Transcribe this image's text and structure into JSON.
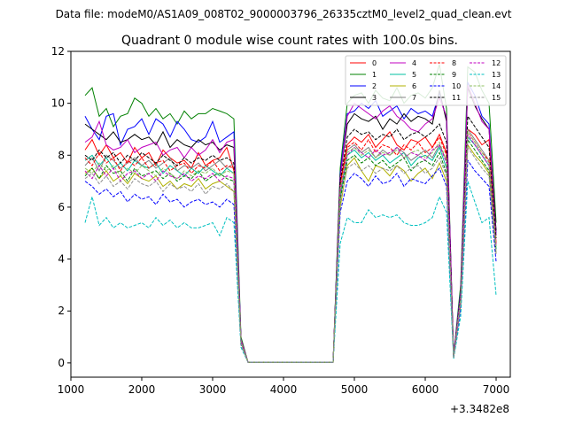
{
  "suptitle": "Data file: modeM0/AS1A09_008T02_9000003796_26335cztM0_level2_quad_clean.evt",
  "chart_data": {
    "type": "line",
    "title": "Quadrant 0 module wise count rates with 100.0s bins.",
    "xlabel": "",
    "ylabel": "",
    "x_offset_label": "+3.3482e8",
    "xlim": [
      1000,
      7200
    ],
    "ylim": [
      -0.55,
      12.0
    ],
    "x_ticks": [
      1000,
      2000,
      3000,
      4000,
      5000,
      6000,
      7000
    ],
    "y_ticks": [
      0,
      2,
      4,
      6,
      8,
      10,
      12
    ],
    "grid": false,
    "legend_position": "top-right",
    "x": [
      1200,
      1300,
      1400,
      1500,
      1600,
      1700,
      1800,
      1900,
      2000,
      2100,
      2200,
      2300,
      2400,
      2500,
      2600,
      2700,
      2800,
      2900,
      3000,
      3100,
      3200,
      3300,
      3400,
      3500,
      3600,
      3700,
      3800,
      3900,
      4000,
      4100,
      4200,
      4300,
      4400,
      4500,
      4600,
      4700,
      4800,
      4900,
      5000,
      5100,
      5200,
      5300,
      5400,
      5500,
      5600,
      5700,
      5800,
      5900,
      6000,
      6100,
      6200,
      6300,
      6400,
      6500,
      6600,
      6700,
      6800,
      6900,
      7000
    ],
    "series": [
      {
        "name": "0",
        "color": "#ff0000",
        "dash": "solid",
        "values": [
          8.2,
          8.6,
          8.0,
          8.4,
          7.9,
          8.1,
          7.7,
          8.3,
          7.9,
          8.1,
          7.6,
          8.2,
          7.9,
          7.7,
          7.8,
          7.5,
          8.1,
          7.6,
          7.8,
          7.9,
          8.3,
          7.4,
          0.9,
          0.02,
          0.02,
          0.02,
          0.02,
          0.02,
          0.02,
          0.02,
          0.02,
          0.02,
          0.02,
          0.02,
          0.02,
          0.02,
          6.9,
          8.4,
          8.7,
          8.5,
          8.8,
          8.3,
          8.6,
          8.9,
          8.4,
          8.2,
          8.6,
          8.5,
          8.7,
          8.3,
          8.8,
          8.1,
          0.2,
          2.6,
          9.0,
          8.8,
          8.4,
          8.6,
          4.6
        ]
      },
      {
        "name": "1",
        "color": "#008000",
        "dash": "solid",
        "values": [
          10.3,
          10.6,
          9.5,
          9.8,
          9.1,
          9.5,
          9.6,
          10.2,
          10.0,
          9.5,
          9.8,
          9.4,
          9.6,
          9.2,
          9.7,
          9.4,
          9.6,
          9.6,
          9.8,
          9.7,
          9.6,
          9.4,
          1.0,
          0.02,
          0.02,
          0.02,
          0.02,
          0.02,
          0.02,
          0.02,
          0.02,
          0.02,
          0.02,
          0.02,
          0.02,
          0.02,
          7.5,
          10.0,
          10.3,
          10.4,
          10.0,
          10.5,
          10.2,
          10.1,
          10.6,
          10.0,
          10.3,
          10.4,
          10.2,
          10.6,
          11.5,
          9.8,
          0.3,
          3.0,
          11.4,
          11.2,
          10.5,
          10.0,
          5.4
        ]
      },
      {
        "name": "2",
        "color": "#0000ff",
        "dash": "solid",
        "values": [
          9.5,
          9.0,
          8.6,
          9.5,
          9.6,
          8.4,
          9.0,
          9.1,
          9.4,
          8.8,
          9.4,
          9.2,
          8.7,
          9.3,
          9.0,
          8.6,
          8.5,
          8.7,
          9.3,
          8.5,
          8.7,
          8.9,
          0.9,
          0.02,
          0.02,
          0.02,
          0.02,
          0.02,
          0.02,
          0.02,
          0.02,
          0.02,
          0.02,
          0.02,
          0.02,
          0.02,
          7.3,
          9.6,
          9.7,
          10.0,
          9.8,
          10.1,
          9.5,
          9.7,
          9.9,
          9.4,
          9.8,
          9.6,
          9.7,
          9.5,
          10.4,
          9.4,
          0.3,
          2.8,
          10.8,
          10.3,
          9.5,
          9.2,
          5.0
        ]
      },
      {
        "name": "3",
        "color": "#000000",
        "dash": "solid",
        "values": [
          9.2,
          9.0,
          8.8,
          8.6,
          8.9,
          8.5,
          8.6,
          8.8,
          8.6,
          8.7,
          8.4,
          8.9,
          8.3,
          8.6,
          8.4,
          8.3,
          8.6,
          8.4,
          8.5,
          8.2,
          8.4,
          8.3,
          0.9,
          0.02,
          0.02,
          0.02,
          0.02,
          0.02,
          0.02,
          0.02,
          0.02,
          0.02,
          0.02,
          0.02,
          0.02,
          0.02,
          7.2,
          9.2,
          9.6,
          9.4,
          9.3,
          9.5,
          9.0,
          9.4,
          9.2,
          9.6,
          9.3,
          9.5,
          9.4,
          9.2,
          10.5,
          9.3,
          0.3,
          2.7,
          10.6,
          9.9,
          9.4,
          9.0,
          5.1
        ]
      },
      {
        "name": "4",
        "color": "#c000c0",
        "dash": "solid",
        "values": [
          8.5,
          8.7,
          9.3,
          8.4,
          8.2,
          8.3,
          8.6,
          8.1,
          8.3,
          8.4,
          8.5,
          8.0,
          8.2,
          8.3,
          7.9,
          8.3,
          8.0,
          8.2,
          8.6,
          8.1,
          8.5,
          8.6,
          0.9,
          0.02,
          0.02,
          0.02,
          0.02,
          0.02,
          0.02,
          0.02,
          0.02,
          0.02,
          0.02,
          0.02,
          0.02,
          0.02,
          7.1,
          9.5,
          10.0,
          9.8,
          9.6,
          9.4,
          9.7,
          9.9,
          9.5,
          9.3,
          9.0,
          8.9,
          9.2,
          9.4,
          10.2,
          9.5,
          0.3,
          2.7,
          10.7,
          10.0,
          9.3,
          9.0,
          4.9
        ]
      },
      {
        "name": "5",
        "color": "#00c0a0",
        "dash": "solid",
        "values": [
          7.8,
          8.0,
          7.6,
          7.9,
          7.5,
          7.7,
          7.4,
          7.8,
          7.6,
          7.5,
          7.7,
          7.3,
          7.6,
          7.4,
          7.2,
          7.5,
          7.3,
          7.6,
          7.4,
          7.2,
          7.5,
          7.3,
          0.8,
          0.02,
          0.02,
          0.02,
          0.02,
          0.02,
          0.02,
          0.02,
          0.02,
          0.02,
          0.02,
          0.02,
          0.02,
          0.02,
          6.4,
          8.0,
          8.2,
          7.9,
          8.1,
          7.8,
          8.0,
          7.7,
          7.9,
          8.1,
          7.6,
          7.9,
          8.0,
          7.8,
          8.3,
          7.5,
          0.2,
          2.4,
          8.7,
          8.4,
          8.0,
          7.6,
          4.4
        ]
      },
      {
        "name": "6",
        "color": "#b0b000",
        "dash": "solid",
        "values": [
          7.3,
          7.5,
          7.1,
          7.4,
          7.0,
          7.2,
          6.9,
          7.3,
          7.1,
          7.0,
          7.2,
          6.8,
          7.0,
          6.7,
          6.9,
          6.8,
          7.1,
          6.7,
          6.9,
          7.0,
          6.8,
          6.6,
          0.8,
          0.02,
          0.02,
          0.02,
          0.02,
          0.02,
          0.02,
          0.02,
          0.02,
          0.02,
          0.02,
          0.02,
          0.02,
          0.02,
          6.0,
          7.6,
          7.9,
          7.4,
          7.0,
          7.6,
          7.5,
          7.2,
          7.6,
          7.4,
          7.0,
          7.3,
          7.5,
          7.1,
          7.7,
          7.0,
          0.2,
          2.2,
          8.4,
          8.0,
          7.7,
          7.3,
          4.2
        ]
      },
      {
        "name": "7",
        "color": "#808080",
        "dash": "solid",
        "values": [
          7.6,
          7.9,
          7.4,
          8.0,
          7.8,
          7.5,
          7.7,
          7.9,
          7.6,
          7.8,
          7.5,
          7.7,
          7.9,
          7.4,
          7.6,
          7.5,
          7.7,
          7.4,
          7.6,
          7.8,
          7.5,
          7.7,
          0.8,
          0.02,
          0.02,
          0.02,
          0.02,
          0.02,
          0.02,
          0.02,
          0.02,
          0.02,
          0.02,
          0.02,
          0.02,
          0.02,
          6.5,
          8.2,
          8.4,
          8.1,
          8.3,
          7.9,
          8.2,
          8.0,
          8.3,
          8.1,
          7.8,
          8.0,
          8.2,
          7.9,
          8.4,
          7.8,
          0.2,
          2.5,
          9.0,
          8.6,
          8.2,
          7.8,
          4.5
        ]
      },
      {
        "name": "8",
        "color": "#ff0000",
        "dash": "dashed",
        "values": [
          7.9,
          7.6,
          8.1,
          7.7,
          7.9,
          7.4,
          7.8,
          7.6,
          7.9,
          7.5,
          7.7,
          7.8,
          7.4,
          7.6,
          7.7,
          7.3,
          7.6,
          7.5,
          7.8,
          7.4,
          7.6,
          7.5,
          0.8,
          0.02,
          0.02,
          0.02,
          0.02,
          0.02,
          0.02,
          0.02,
          0.02,
          0.02,
          0.02,
          0.02,
          0.02,
          0.02,
          6.8,
          8.3,
          8.5,
          8.2,
          8.6,
          8.1,
          8.4,
          8.3,
          8.0,
          8.4,
          8.2,
          8.5,
          8.1,
          8.3,
          8.7,
          8.0,
          0.2,
          2.5,
          8.9,
          8.5,
          8.1,
          7.8,
          4.6
        ]
      },
      {
        "name": "9",
        "color": "#008000",
        "dash": "dashed",
        "values": [
          7.2,
          7.5,
          7.1,
          7.6,
          7.3,
          7.4,
          7.0,
          7.5,
          7.2,
          7.3,
          7.4,
          7.1,
          7.3,
          7.0,
          7.2,
          7.1,
          7.4,
          7.0,
          7.2,
          7.3,
          7.1,
          7.0,
          0.8,
          0.02,
          0.02,
          0.02,
          0.02,
          0.02,
          0.02,
          0.02,
          0.02,
          0.02,
          0.02,
          0.02,
          0.02,
          0.02,
          6.3,
          7.8,
          8.0,
          7.7,
          7.9,
          7.6,
          7.8,
          7.5,
          7.7,
          7.9,
          7.4,
          7.7,
          7.8,
          7.6,
          8.1,
          7.3,
          0.2,
          2.3,
          8.6,
          8.2,
          7.8,
          7.4,
          4.3
        ]
      },
      {
        "name": "10",
        "color": "#0000ff",
        "dash": "dashed",
        "values": [
          7.0,
          6.8,
          6.5,
          6.7,
          6.4,
          6.6,
          6.2,
          6.5,
          6.3,
          6.4,
          6.1,
          6.5,
          6.2,
          6.3,
          6.0,
          6.2,
          6.3,
          6.1,
          6.2,
          6.0,
          6.3,
          6.1,
          0.7,
          0.02,
          0.02,
          0.02,
          0.02,
          0.02,
          0.02,
          0.02,
          0.02,
          0.02,
          0.02,
          0.02,
          0.02,
          0.02,
          5.8,
          7.0,
          7.3,
          7.1,
          6.8,
          7.2,
          6.9,
          7.0,
          7.3,
          6.8,
          7.1,
          7.0,
          6.9,
          7.2,
          7.5,
          6.8,
          0.2,
          2.1,
          7.8,
          7.4,
          7.1,
          6.8,
          3.9
        ]
      },
      {
        "name": "11",
        "color": "#000000",
        "dash": "dashed",
        "values": [
          8.0,
          7.8,
          8.2,
          7.9,
          8.1,
          7.7,
          8.0,
          7.8,
          8.1,
          7.9,
          7.7,
          8.0,
          7.8,
          7.6,
          7.9,
          7.7,
          7.9,
          7.8,
          8.0,
          7.8,
          7.9,
          7.7,
          0.8,
          0.02,
          0.02,
          0.02,
          0.02,
          0.02,
          0.02,
          0.02,
          0.02,
          0.02,
          0.02,
          0.02,
          0.02,
          0.02,
          7.0,
          8.7,
          9.0,
          8.8,
          8.9,
          8.6,
          8.8,
          8.7,
          9.0,
          8.6,
          8.8,
          8.9,
          8.7,
          8.9,
          9.2,
          8.5,
          0.2,
          2.6,
          9.5,
          9.1,
          8.7,
          8.3,
          4.8
        ]
      },
      {
        "name": "12",
        "color": "#c000c0",
        "dash": "dashed",
        "values": [
          7.4,
          7.1,
          7.6,
          7.2,
          7.5,
          7.0,
          7.3,
          7.4,
          7.1,
          7.3,
          7.0,
          7.4,
          7.2,
          7.1,
          7.3,
          7.0,
          7.2,
          7.1,
          7.3,
          7.0,
          7.2,
          7.1,
          0.8,
          0.02,
          0.02,
          0.02,
          0.02,
          0.02,
          0.02,
          0.02,
          0.02,
          0.02,
          0.02,
          0.02,
          0.02,
          0.02,
          6.6,
          8.0,
          8.3,
          8.1,
          7.9,
          8.2,
          8.0,
          8.1,
          8.3,
          7.9,
          8.1,
          8.0,
          7.8,
          8.2,
          8.4,
          7.7,
          0.2,
          2.4,
          8.8,
          8.4,
          8.0,
          7.6,
          4.5
        ]
      },
      {
        "name": "13",
        "color": "#00c0c0",
        "dash": "dashed",
        "values": [
          5.4,
          6.4,
          5.3,
          5.6,
          5.2,
          5.4,
          5.2,
          5.3,
          5.4,
          5.2,
          5.6,
          5.3,
          5.5,
          5.2,
          5.4,
          5.2,
          5.2,
          5.3,
          5.4,
          4.9,
          5.6,
          5.4,
          0.6,
          0.02,
          0.02,
          0.02,
          0.02,
          0.02,
          0.02,
          0.02,
          0.02,
          0.02,
          0.02,
          0.02,
          0.02,
          0.02,
          4.6,
          5.6,
          5.4,
          5.4,
          5.9,
          5.6,
          5.7,
          5.6,
          5.7,
          5.4,
          5.3,
          5.3,
          5.4,
          5.6,
          6.4,
          5.8,
          0.15,
          1.8,
          7.0,
          6.2,
          5.4,
          5.6,
          2.6
        ]
      },
      {
        "name": "14",
        "color": "#90c060",
        "dash": "dashed",
        "values": [
          7.5,
          7.3,
          7.7,
          7.4,
          7.6,
          7.2,
          7.5,
          7.3,
          7.6,
          7.4,
          7.2,
          7.5,
          7.3,
          7.1,
          7.4,
          7.2,
          7.4,
          7.3,
          7.5,
          7.2,
          7.4,
          7.3,
          0.8,
          0.02,
          0.02,
          0.02,
          0.02,
          0.02,
          0.02,
          0.02,
          0.02,
          0.02,
          0.02,
          0.02,
          0.02,
          0.02,
          6.7,
          8.1,
          8.3,
          8.0,
          8.2,
          7.9,
          8.1,
          8.0,
          8.2,
          7.9,
          8.1,
          8.2,
          7.9,
          8.1,
          8.5,
          7.8,
          0.2,
          2.5,
          8.9,
          8.5,
          8.1,
          7.7,
          4.5
        ]
      },
      {
        "name": "15",
        "color": "#909090",
        "dash": "dashed",
        "values": [
          7.1,
          7.3,
          6.9,
          7.2,
          6.8,
          7.0,
          6.7,
          7.1,
          6.9,
          6.8,
          7.0,
          6.6,
          6.9,
          6.7,
          6.8,
          6.6,
          6.9,
          6.5,
          6.8,
          6.7,
          6.9,
          6.6,
          0.7,
          0.02,
          0.02,
          0.02,
          0.02,
          0.02,
          0.02,
          0.02,
          0.02,
          0.02,
          0.02,
          0.02,
          0.02,
          0.02,
          6.2,
          7.5,
          7.7,
          7.4,
          7.6,
          7.3,
          7.5,
          7.4,
          7.6,
          7.3,
          7.5,
          7.6,
          7.3,
          7.5,
          7.9,
          7.2,
          0.2,
          2.3,
          8.3,
          7.9,
          7.5,
          7.2,
          4.2
        ]
      }
    ]
  }
}
